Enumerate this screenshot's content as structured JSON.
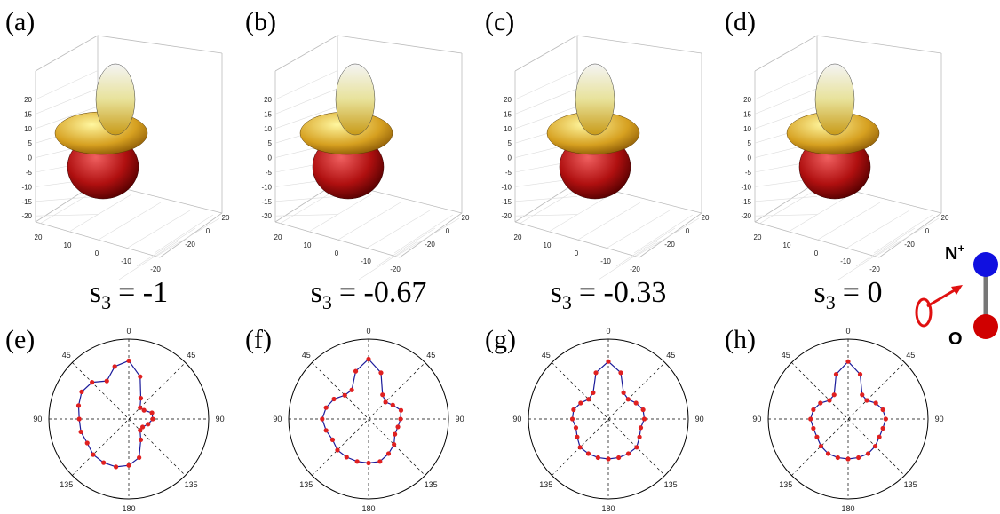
{
  "panels3d": [
    {
      "label": "(a)",
      "caption_symbol": "s",
      "caption_sub": "3",
      "caption_rest": "= -1"
    },
    {
      "label": "(b)",
      "caption_symbol": "s",
      "caption_sub": "3",
      "caption_rest": "= -0.67"
    },
    {
      "label": "(c)",
      "caption_symbol": "s",
      "caption_sub": "3",
      "caption_rest": "= -0.33"
    },
    {
      "label": "(d)",
      "caption_symbol": "s",
      "caption_sub": "3",
      "caption_rest": "= 0"
    }
  ],
  "axes3d": {
    "zticks": [
      20,
      15,
      10,
      5,
      0,
      -5,
      -10,
      -15,
      -20
    ],
    "xticks": [
      20,
      10,
      0,
      -10,
      -20
    ],
    "yticks": [
      20,
      0,
      -20
    ]
  },
  "polar": {
    "angle_labels": [
      0,
      45,
      45,
      90,
      90,
      135,
      135,
      180
    ],
    "theta": [
      0,
      15,
      30,
      45,
      60,
      75,
      90,
      105,
      120,
      135,
      150,
      165,
      180,
      195,
      210,
      225,
      240,
      255,
      270,
      285,
      300,
      315,
      330,
      345
    ],
    "panels": [
      {
        "label": "(e)",
        "r": [
          0.73,
          0.55,
          0.3,
          0.2,
          0.22,
          0.3,
          0.3,
          0.25,
          0.2,
          0.2,
          0.3,
          0.5,
          0.58,
          0.62,
          0.63,
          0.63,
          0.6,
          0.62,
          0.62,
          0.65,
          0.68,
          0.65,
          0.55,
          0.68
        ]
      },
      {
        "label": "(f)",
        "r": [
          0.75,
          0.6,
          0.35,
          0.3,
          0.35,
          0.42,
          0.4,
          0.38,
          0.38,
          0.45,
          0.5,
          0.55,
          0.55,
          0.55,
          0.55,
          0.55,
          0.52,
          0.55,
          0.58,
          0.55,
          0.5,
          0.42,
          0.42,
          0.62
        ]
      },
      {
        "label": "(g)",
        "r": [
          0.72,
          0.6,
          0.38,
          0.35,
          0.4,
          0.45,
          0.45,
          0.42,
          0.45,
          0.5,
          0.5,
          0.5,
          0.5,
          0.5,
          0.5,
          0.5,
          0.45,
          0.42,
          0.45,
          0.45,
          0.4,
          0.35,
          0.38,
          0.6
        ]
      },
      {
        "label": "(h)",
        "r": [
          0.72,
          0.58,
          0.35,
          0.33,
          0.4,
          0.45,
          0.47,
          0.45,
          0.45,
          0.48,
          0.5,
          0.5,
          0.5,
          0.5,
          0.5,
          0.48,
          0.45,
          0.45,
          0.47,
          0.45,
          0.4,
          0.33,
          0.35,
          0.58
        ]
      }
    ]
  },
  "molecule": {
    "top_label": "N",
    "top_charge": "+",
    "bottom_label": "O"
  }
}
